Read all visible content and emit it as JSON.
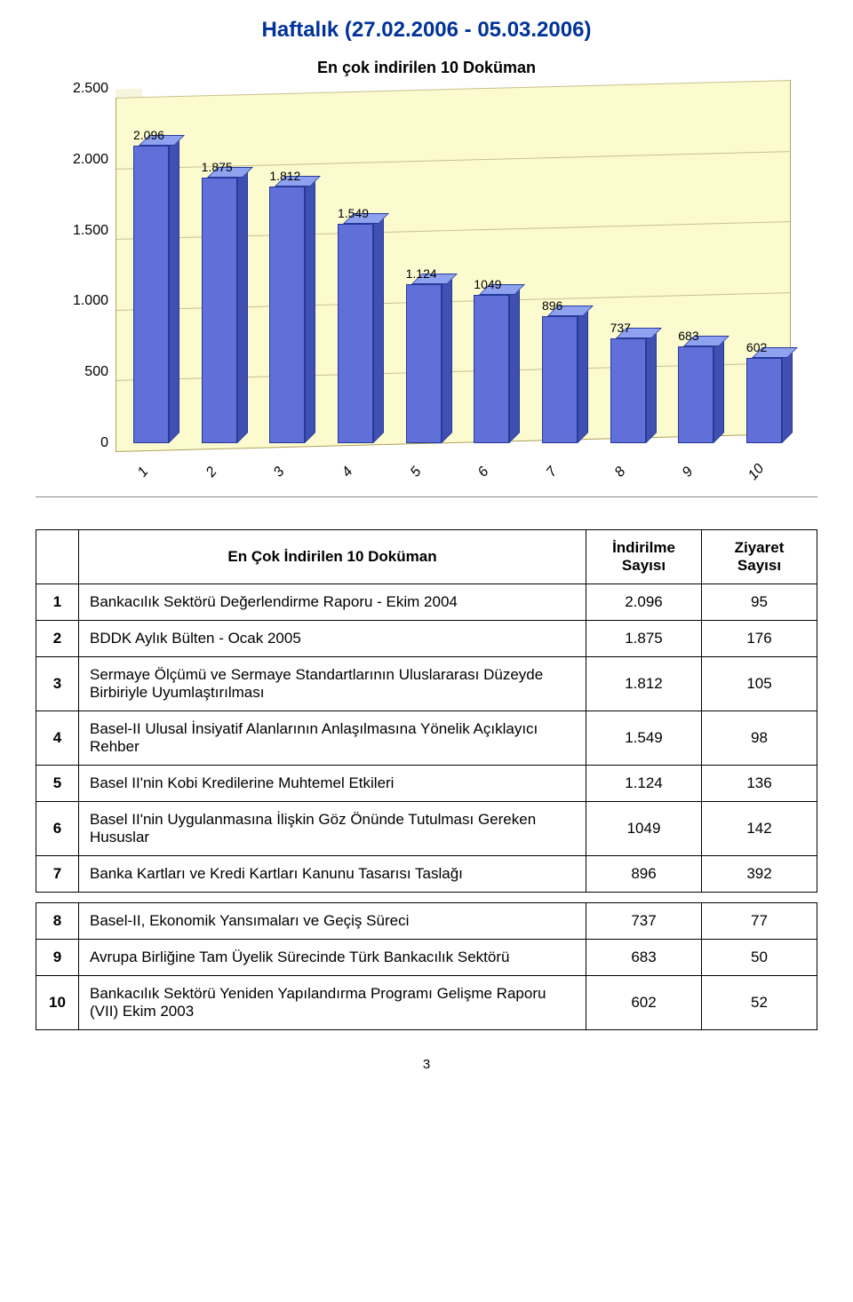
{
  "page": {
    "title": "Haftalık (27.02.2006 - 05.03.2006)",
    "title_color": "#003399",
    "title_fontsize": 24,
    "page_number": "3"
  },
  "chart": {
    "type": "bar-3d",
    "title": "En çok indirilen 10 Doküman",
    "title_fontsize": 18,
    "background_color": "#fcfbcf",
    "bar_color": "#6070d8",
    "bar_top_color": "#8ea2f0",
    "bar_side_color": "#4050b0",
    "bar_border_color": "#253a9a",
    "grid_color": "#c8c090",
    "ymin": 0,
    "ymax": 2500,
    "ytick_step": 500,
    "y_ticks": [
      "0",
      "500",
      "1.000",
      "1.500",
      "2.000",
      "2.500"
    ],
    "x_categories": [
      "1",
      "2",
      "3",
      "4",
      "5",
      "6",
      "7",
      "8",
      "9",
      "10"
    ],
    "values": [
      2096,
      1875,
      1812,
      1549,
      1124,
      1049,
      896,
      737,
      683,
      602
    ],
    "value_labels": [
      "2.096",
      "1.875",
      "1.812",
      "1.549",
      "1.124",
      "1049",
      "896",
      "737",
      "683",
      "602"
    ]
  },
  "table": {
    "header": {
      "title": "En Çok İndirilen 10 Doküman",
      "col2": "İndirilme Sayısı",
      "col3": "Ziyaret Sayısı"
    },
    "rows": [
      {
        "n": "1",
        "title": "Bankacılık Sektörü Değerlendirme Raporu - Ekim 2004",
        "c2": "2.096",
        "c3": "95"
      },
      {
        "n": "2",
        "title": "BDDK Aylık Bülten - Ocak 2005",
        "c2": "1.875",
        "c3": "176"
      },
      {
        "n": "3",
        "title": "Sermaye Ölçümü ve Sermaye Standartlarının Uluslararası Düzeyde Birbiriyle Uyumlaştırılması",
        "c2": "1.812",
        "c3": "105"
      },
      {
        "n": "4",
        "title": "Basel-II Ulusal İnsiyatif Alanlarının Anlaşılmasına Yönelik Açıklayıcı Rehber",
        "c2": "1.549",
        "c3": "98"
      },
      {
        "n": "5",
        "title": "Basel II'nin Kobi Kredilerine Muhtemel Etkileri",
        "c2": "1.124",
        "c3": "136"
      },
      {
        "n": "6",
        "title": "Basel II'nin Uygulanmasına İlişkin Göz Önünde Tutulması Gereken Hususlar",
        "c2": "1049",
        "c3": "142"
      },
      {
        "n": "7",
        "title": "Banka Kartları ve Kredi Kartları Kanunu Tasarısı Taslağı",
        "c2": "896",
        "c3": "392"
      },
      {
        "n": "8",
        "title": "Basel-II, Ekonomik Yansımaları ve Geçiş Süreci",
        "c2": "737",
        "c3": "77"
      },
      {
        "n": "9",
        "title": "Avrupa Birliğine Tam Üyelik Sürecinde Türk Bankacılık Sektörü",
        "c2": "683",
        "c3": "50"
      },
      {
        "n": "10",
        "title": "Bankacılık Sektörü Yeniden Yapılandırma Programı Gelişme Raporu (VII) Ekim 2003",
        "c2": "602",
        "c3": "52"
      }
    ],
    "section_break_after": 7,
    "colors": {
      "border": "#000000",
      "text": "#000000"
    }
  }
}
